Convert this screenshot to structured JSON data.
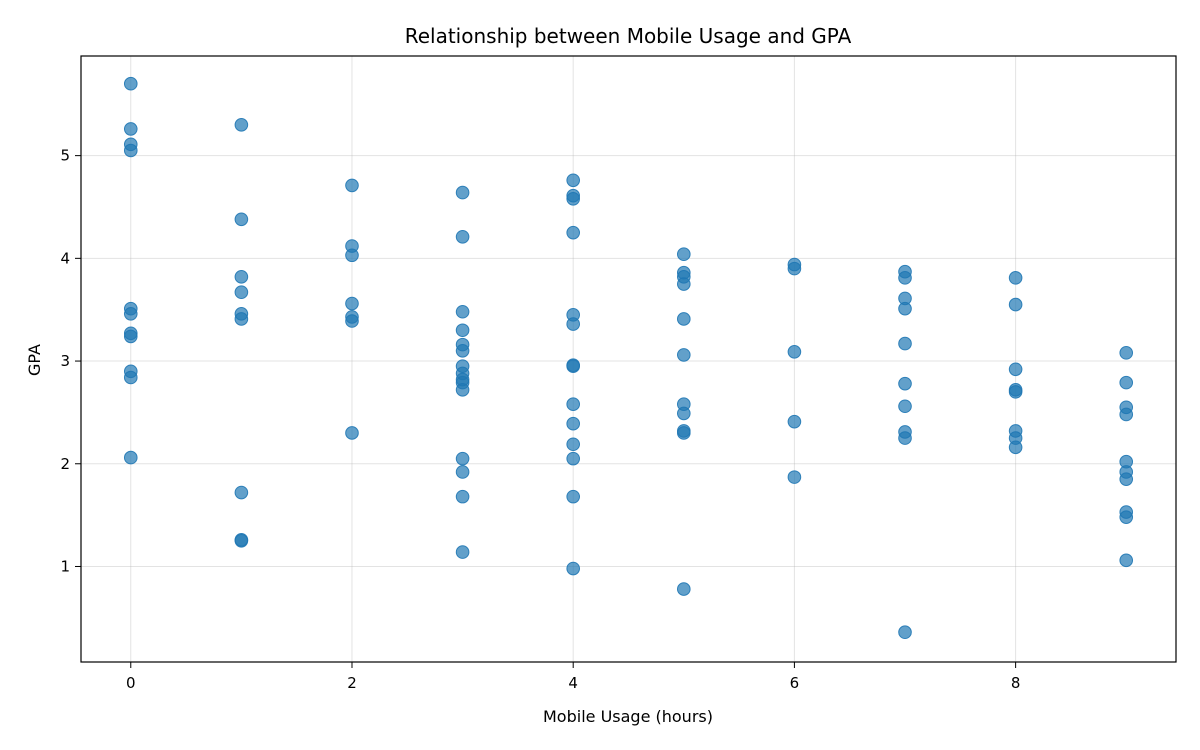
{
  "chart_data": {
    "type": "scatter",
    "title": "Relationship between Mobile Usage and GPA",
    "xlabel": "Mobile Usage (hours)",
    "ylabel": "GPA",
    "xlim": [
      -0.45,
      9.45
    ],
    "ylim": [
      0.07,
      5.97
    ],
    "xticks": [
      0,
      2,
      4,
      6,
      8
    ],
    "yticks": [
      1,
      2,
      3,
      4,
      5
    ],
    "grid": true,
    "marker_color": "#1f77b4",
    "marker_opacity": 0.7,
    "points": [
      {
        "x": 0,
        "y": 5.7
      },
      {
        "x": 0,
        "y": 5.26
      },
      {
        "x": 0,
        "y": 5.11
      },
      {
        "x": 0,
        "y": 5.05
      },
      {
        "x": 0,
        "y": 3.51
      },
      {
        "x": 0,
        "y": 3.46
      },
      {
        "x": 0,
        "y": 3.27
      },
      {
        "x": 0,
        "y": 3.24
      },
      {
        "x": 0,
        "y": 2.9
      },
      {
        "x": 0,
        "y": 2.84
      },
      {
        "x": 0,
        "y": 2.06
      },
      {
        "x": 1,
        "y": 5.3
      },
      {
        "x": 1,
        "y": 4.38
      },
      {
        "x": 1,
        "y": 3.82
      },
      {
        "x": 1,
        "y": 3.67
      },
      {
        "x": 1,
        "y": 3.46
      },
      {
        "x": 1,
        "y": 3.41
      },
      {
        "x": 1,
        "y": 1.72
      },
      {
        "x": 1,
        "y": 1.26
      },
      {
        "x": 1,
        "y": 1.25
      },
      {
        "x": 2,
        "y": 4.71
      },
      {
        "x": 2,
        "y": 4.12
      },
      {
        "x": 2,
        "y": 4.03
      },
      {
        "x": 2,
        "y": 3.56
      },
      {
        "x": 2,
        "y": 3.43
      },
      {
        "x": 2,
        "y": 3.39
      },
      {
        "x": 2,
        "y": 2.3
      },
      {
        "x": 3,
        "y": 4.64
      },
      {
        "x": 3,
        "y": 4.21
      },
      {
        "x": 3,
        "y": 3.48
      },
      {
        "x": 3,
        "y": 3.3
      },
      {
        "x": 3,
        "y": 3.16
      },
      {
        "x": 3,
        "y": 3.1
      },
      {
        "x": 3,
        "y": 2.95
      },
      {
        "x": 3,
        "y": 2.88
      },
      {
        "x": 3,
        "y": 2.82
      },
      {
        "x": 3,
        "y": 2.79
      },
      {
        "x": 3,
        "y": 2.72
      },
      {
        "x": 3,
        "y": 2.05
      },
      {
        "x": 3,
        "y": 1.92
      },
      {
        "x": 3,
        "y": 1.68
      },
      {
        "x": 3,
        "y": 1.14
      },
      {
        "x": 4,
        "y": 4.76
      },
      {
        "x": 4,
        "y": 4.61
      },
      {
        "x": 4,
        "y": 4.58
      },
      {
        "x": 4,
        "y": 4.25
      },
      {
        "x": 4,
        "y": 3.45
      },
      {
        "x": 4,
        "y": 3.36
      },
      {
        "x": 4,
        "y": 2.96
      },
      {
        "x": 4,
        "y": 2.95
      },
      {
        "x": 4,
        "y": 2.58
      },
      {
        "x": 4,
        "y": 2.39
      },
      {
        "x": 4,
        "y": 2.19
      },
      {
        "x": 4,
        "y": 2.05
      },
      {
        "x": 4,
        "y": 1.68
      },
      {
        "x": 4,
        "y": 0.98
      },
      {
        "x": 5,
        "y": 4.04
      },
      {
        "x": 5,
        "y": 3.86
      },
      {
        "x": 5,
        "y": 3.82
      },
      {
        "x": 5,
        "y": 3.75
      },
      {
        "x": 5,
        "y": 3.41
      },
      {
        "x": 5,
        "y": 3.06
      },
      {
        "x": 5,
        "y": 2.58
      },
      {
        "x": 5,
        "y": 2.49
      },
      {
        "x": 5,
        "y": 2.32
      },
      {
        "x": 5,
        "y": 2.3
      },
      {
        "x": 5,
        "y": 0.78
      },
      {
        "x": 6,
        "y": 3.94
      },
      {
        "x": 6,
        "y": 3.9
      },
      {
        "x": 6,
        "y": 3.09
      },
      {
        "x": 6,
        "y": 2.41
      },
      {
        "x": 6,
        "y": 1.87
      },
      {
        "x": 7,
        "y": 3.87
      },
      {
        "x": 7,
        "y": 3.81
      },
      {
        "x": 7,
        "y": 3.61
      },
      {
        "x": 7,
        "y": 3.51
      },
      {
        "x": 7,
        "y": 3.17
      },
      {
        "x": 7,
        "y": 2.78
      },
      {
        "x": 7,
        "y": 2.56
      },
      {
        "x": 7,
        "y": 2.31
      },
      {
        "x": 7,
        "y": 2.25
      },
      {
        "x": 7,
        "y": 0.36
      },
      {
        "x": 8,
        "y": 3.81
      },
      {
        "x": 8,
        "y": 3.55
      },
      {
        "x": 8,
        "y": 2.92
      },
      {
        "x": 8,
        "y": 2.72
      },
      {
        "x": 8,
        "y": 2.7
      },
      {
        "x": 8,
        "y": 2.32
      },
      {
        "x": 8,
        "y": 2.25
      },
      {
        "x": 8,
        "y": 2.16
      },
      {
        "x": 9,
        "y": 3.08
      },
      {
        "x": 9,
        "y": 2.79
      },
      {
        "x": 9,
        "y": 2.55
      },
      {
        "x": 9,
        "y": 2.48
      },
      {
        "x": 9,
        "y": 2.02
      },
      {
        "x": 9,
        "y": 1.92
      },
      {
        "x": 9,
        "y": 1.85
      },
      {
        "x": 9,
        "y": 1.53
      },
      {
        "x": 9,
        "y": 1.48
      },
      {
        "x": 9,
        "y": 1.06
      }
    ]
  }
}
